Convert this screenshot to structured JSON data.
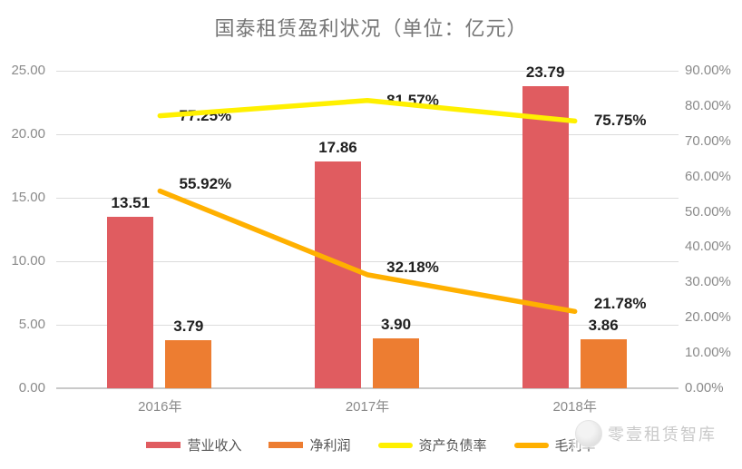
{
  "title": "国泰租赁盈利状况（单位：亿元）",
  "watermark": {
    "text": "零壹租赁智库"
  },
  "chart_data": {
    "type": "combo_bar_line",
    "title": "国泰租赁盈利状况（单位：亿元）",
    "categories": [
      "2016年",
      "2017年",
      "2018年"
    ],
    "series": [
      {
        "name": "营业收入",
        "type": "bar",
        "axis": "left",
        "color": "#E05C60",
        "values": [
          13.51,
          17.86,
          23.79
        ],
        "labels": [
          "13.51",
          "17.86",
          "23.79"
        ]
      },
      {
        "name": "净利润",
        "type": "bar",
        "axis": "left",
        "color": "#ED7D31",
        "values": [
          3.79,
          3.9,
          3.86
        ],
        "labels": [
          "3.79",
          "3.90",
          "3.86"
        ]
      },
      {
        "name": "资产负债率",
        "type": "line",
        "axis": "right",
        "color": "#FFF000",
        "values": [
          77.25,
          81.57,
          75.75
        ],
        "labels": [
          "77.25%",
          "81.57%",
          "75.75%"
        ]
      },
      {
        "name": "毛利率",
        "type": "line",
        "axis": "right",
        "color": "#FFB000",
        "values": [
          55.92,
          32.18,
          21.78
        ],
        "labels": [
          "55.92%",
          "32.18%",
          "21.78%"
        ]
      }
    ],
    "left_axis": {
      "min": 0,
      "max": 25,
      "ticks": [
        "0.00",
        "5.00",
        "10.00",
        "15.00",
        "20.00",
        "25.00"
      ]
    },
    "right_axis": {
      "min": 0,
      "max": 90,
      "ticks": [
        "0.00%",
        "10.00%",
        "20.00%",
        "30.00%",
        "40.00%",
        "50.00%",
        "60.00%",
        "70.00%",
        "80.00%",
        "90.00%"
      ]
    },
    "grid": true,
    "legend_position": "bottom"
  }
}
